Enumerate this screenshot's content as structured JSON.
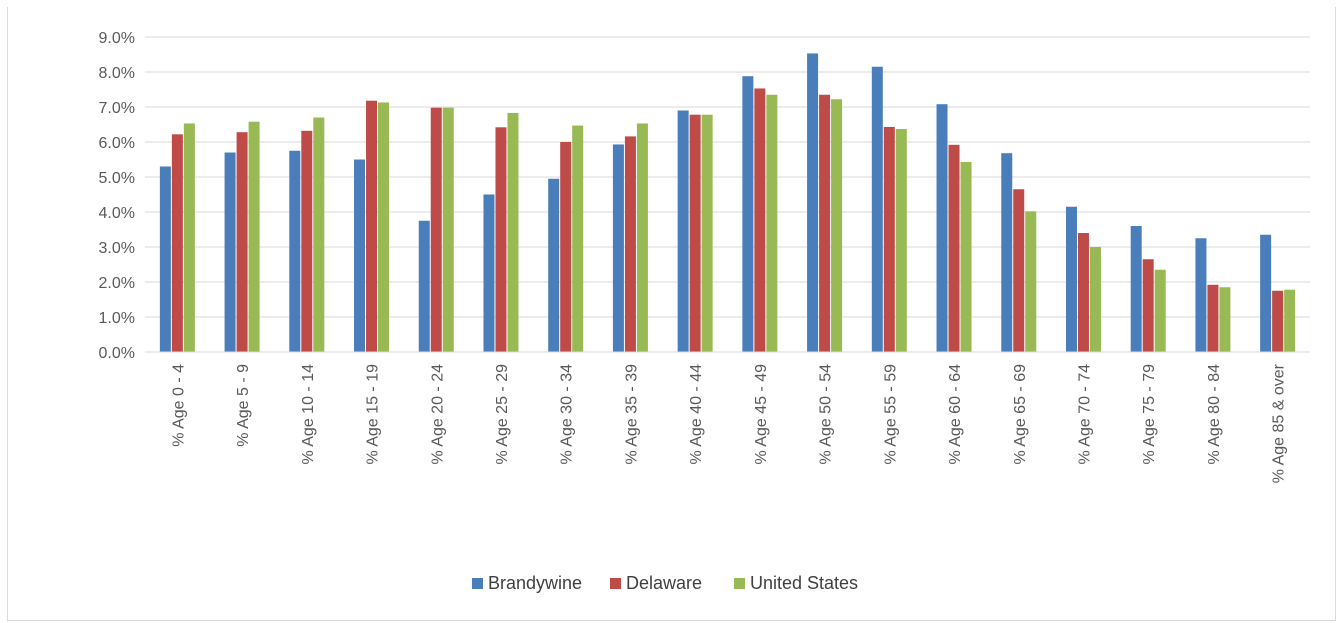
{
  "chart_data": {
    "type": "bar",
    "title": "",
    "xlabel": "",
    "ylabel": "",
    "ylim": [
      0,
      9
    ],
    "y_ticks": [
      "0.0%",
      "1.0%",
      "2.0%",
      "3.0%",
      "4.0%",
      "5.0%",
      "6.0%",
      "7.0%",
      "8.0%",
      "9.0%"
    ],
    "grid": true,
    "legend_position": "bottom",
    "categories": [
      "% Age 0 - 4",
      "% Age 5 - 9",
      "% Age 10 - 14",
      "% Age 15 - 19",
      "% Age 20 - 24",
      "% Age 25 - 29",
      "% Age 30 - 34",
      "% Age 35 - 39",
      "% Age 40 - 44",
      "% Age 45 - 49",
      "% Age 50 - 54",
      "% Age 55 - 59",
      "% Age 60 - 64",
      "% Age 65 - 69",
      "% Age 70 - 74",
      "% Age 75 - 79",
      "% Age 80 - 84",
      "% Age 85 & over"
    ],
    "series": [
      {
        "name": "Brandywine",
        "color": "#4a7ebb",
        "values": [
          5.3,
          5.7,
          5.75,
          5.5,
          3.75,
          4.5,
          4.95,
          5.93,
          6.9,
          7.88,
          8.53,
          8.15,
          7.08,
          5.68,
          4.15,
          3.6,
          3.25,
          3.35
        ]
      },
      {
        "name": "Delaware",
        "color": "#be4b48",
        "values": [
          6.22,
          6.28,
          6.32,
          7.18,
          6.98,
          6.42,
          6.0,
          6.16,
          6.78,
          7.53,
          7.35,
          6.43,
          5.92,
          4.65,
          3.4,
          2.65,
          1.92,
          1.75
        ]
      },
      {
        "name": "United States",
        "color": "#98b954",
        "values": [
          6.53,
          6.58,
          6.7,
          7.13,
          6.98,
          6.83,
          6.47,
          6.53,
          6.78,
          7.35,
          7.22,
          6.37,
          5.43,
          4.02,
          3.0,
          2.35,
          1.85,
          1.78
        ]
      }
    ]
  }
}
